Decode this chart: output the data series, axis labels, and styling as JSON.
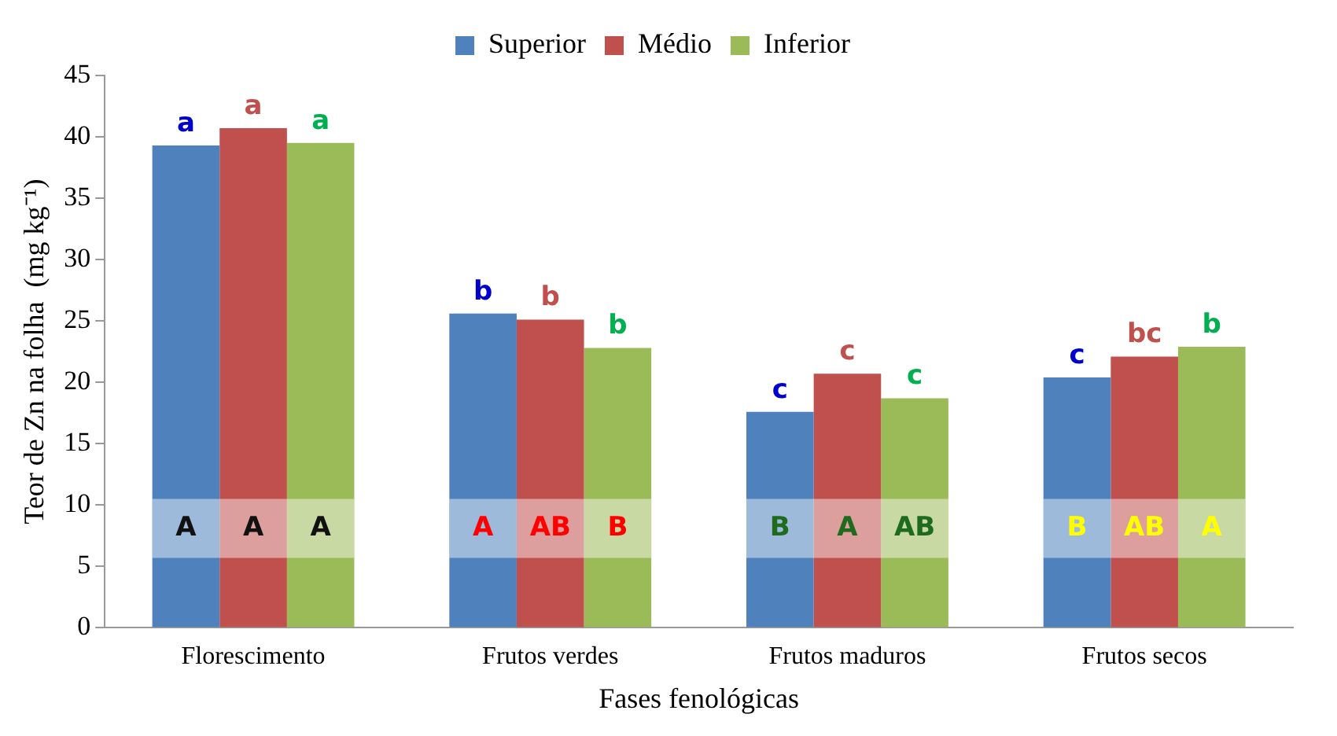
{
  "chart_data": {
    "type": "bar",
    "categories": [
      "Florescimento",
      "Frutos verdes",
      "Frutos maduros",
      "Frutos secos"
    ],
    "series": [
      {
        "name": "Superior",
        "color": "#4f81bd",
        "values": [
          39.3,
          25.6,
          17.6,
          20.4
        ],
        "value_labels": [
          "a",
          "b",
          "c",
          "c"
        ]
      },
      {
        "name": "Médio",
        "color": "#c0504d",
        "values": [
          40.7,
          25.1,
          20.7,
          22.1
        ],
        "value_labels": [
          "a",
          "b",
          "c",
          "bc"
        ]
      },
      {
        "name": "Inferior",
        "color": "#9bbb59",
        "values": [
          39.5,
          22.8,
          18.7,
          22.9
        ],
        "value_labels": [
          "a",
          "b",
          "c",
          "b"
        ]
      }
    ],
    "xlabel": "Fases fenológicas",
    "ylabel": "Teor de Zn na folha  (mg kg⁻¹)",
    "ylim": [
      0,
      45
    ],
    "yticks": [
      0,
      5,
      10,
      15,
      20,
      25,
      30,
      35,
      40,
      45
    ],
    "grid": false,
    "legend": "top",
    "bands": [
      {
        "axis": "y",
        "from": 5.7,
        "to": 10.5,
        "color": "#ffffff"
      }
    ],
    "annotations": [
      "A",
      "A",
      "A",
      "A",
      "AB",
      "B",
      "B",
      "A",
      "AB",
      "B",
      "AB",
      "A"
    ]
  }
}
